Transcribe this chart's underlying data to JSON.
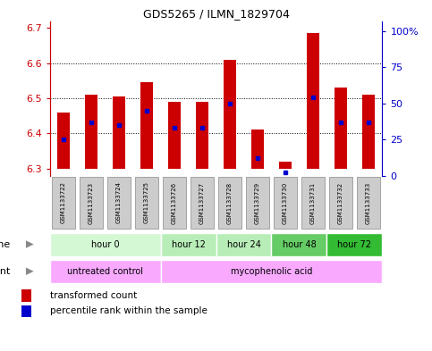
{
  "title": "GDS5265 / ILMN_1829704",
  "samples": [
    "GSM1133722",
    "GSM1133723",
    "GSM1133724",
    "GSM1133725",
    "GSM1133726",
    "GSM1133727",
    "GSM1133728",
    "GSM1133729",
    "GSM1133730",
    "GSM1133731",
    "GSM1133732",
    "GSM1133733"
  ],
  "bar_top": [
    6.46,
    6.51,
    6.505,
    6.545,
    6.49,
    6.49,
    6.61,
    6.41,
    6.32,
    6.685,
    6.53,
    6.51
  ],
  "bar_bottom": 6.3,
  "percentile": [
    25,
    37,
    35,
    45,
    33,
    33,
    50,
    12,
    2,
    54,
    37,
    37
  ],
  "ylim_left": [
    6.28,
    6.72
  ],
  "ylim_right": [
    0,
    107
  ],
  "yticks_left": [
    6.3,
    6.4,
    6.5,
    6.6,
    6.7
  ],
  "yticks_right": [
    0,
    25,
    50,
    75,
    100
  ],
  "ytick_labels_right": [
    "0",
    "25",
    "50",
    "75",
    "100%"
  ],
  "hgrid_lines": [
    6.4,
    6.5,
    6.6
  ],
  "time_groups": [
    {
      "label": "hour 0",
      "start": 0,
      "end": 4,
      "color": "#d4f7d4"
    },
    {
      "label": "hour 12",
      "start": 4,
      "end": 6,
      "color": "#b8edb8"
    },
    {
      "label": "hour 24",
      "start": 6,
      "end": 8,
      "color": "#b8edb8"
    },
    {
      "label": "hour 48",
      "start": 8,
      "end": 10,
      "color": "#66cc66"
    },
    {
      "label": "hour 72",
      "start": 10,
      "end": 12,
      "color": "#33bb33"
    }
  ],
  "agent_groups": [
    {
      "label": "untreated control",
      "start": 0,
      "end": 4,
      "color": "#f9aaff"
    },
    {
      "label": "mycophenolic acid",
      "start": 4,
      "end": 12,
      "color": "#f9aaff"
    }
  ],
  "bar_color": "#cc0000",
  "dot_color": "#0000cc",
  "left_tick_color": "#cc0000",
  "right_tick_color": "#0000cc",
  "sample_box_color": "#cccccc",
  "sample_box_edge": "#888888",
  "bg_color": "#ffffff"
}
